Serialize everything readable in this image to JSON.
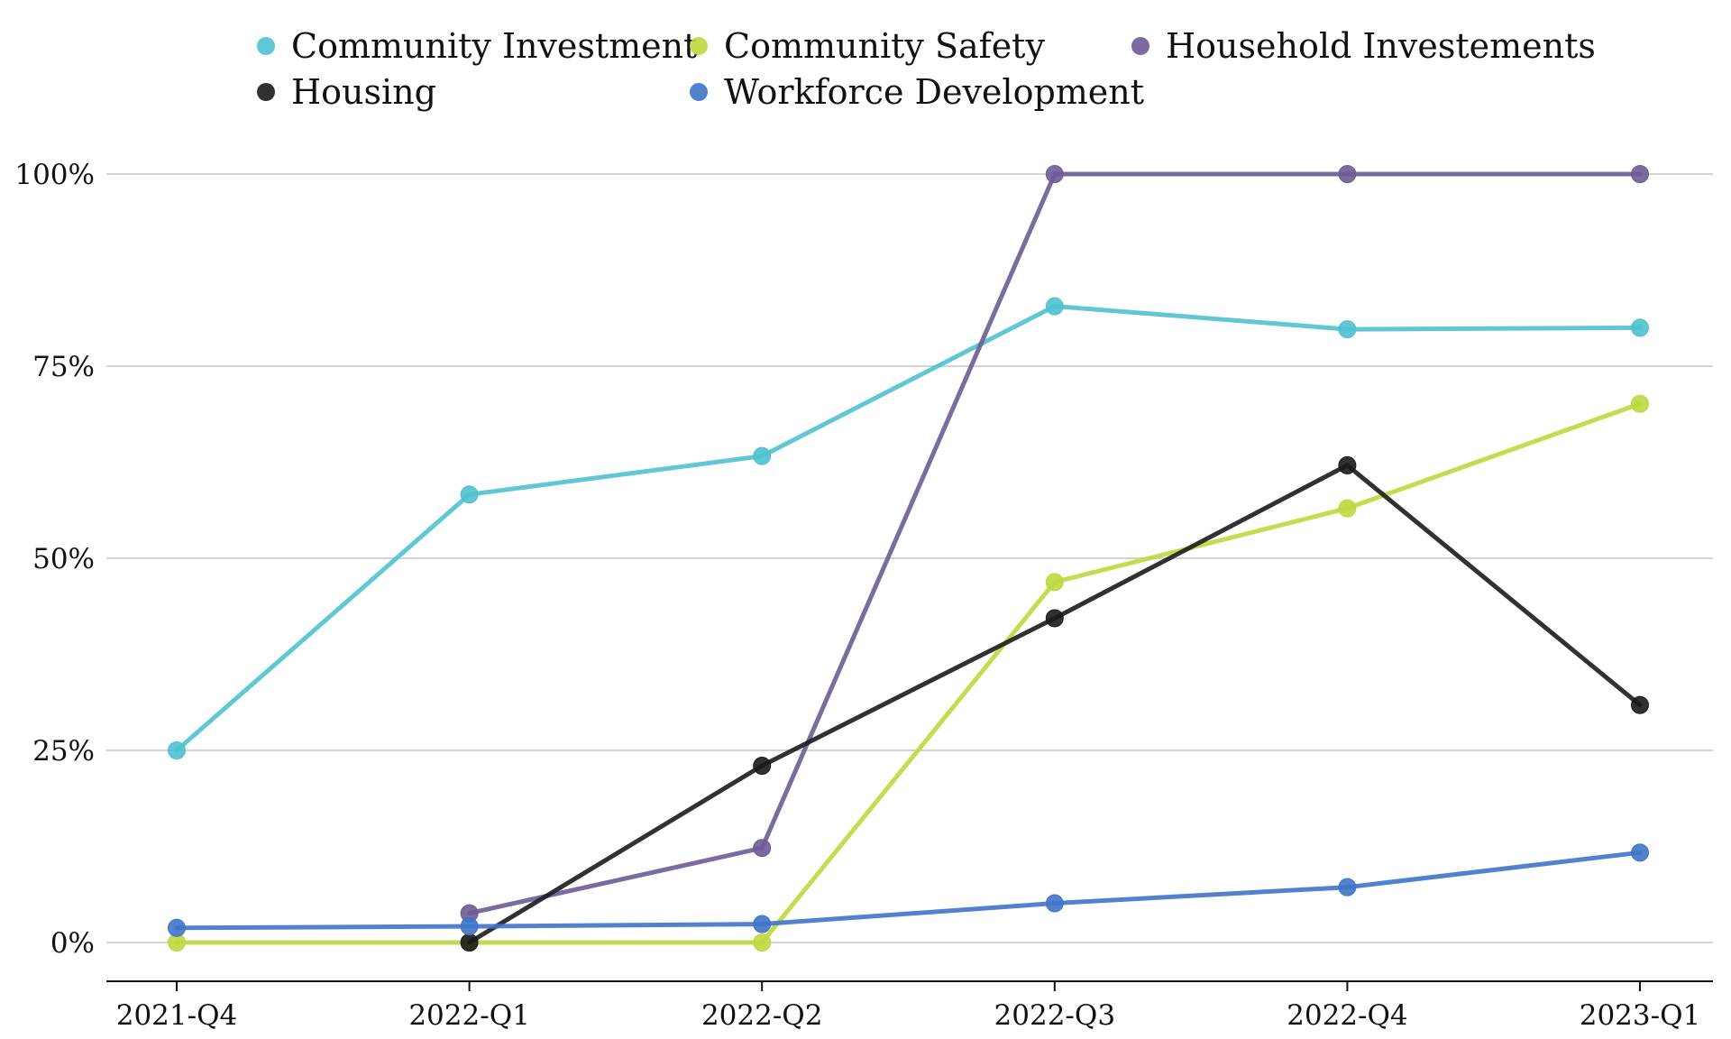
{
  "chart_data": {
    "type": "line",
    "categories": [
      "2021-Q4",
      "2022-Q1",
      "2022-Q2",
      "2022-Q3",
      "2022-Q4",
      "2023-Q1"
    ],
    "yticks": [
      {
        "value": 0,
        "label": "0%"
      },
      {
        "value": 25,
        "label": "25%"
      },
      {
        "value": 50,
        "label": "50%"
      },
      {
        "value": 75,
        "label": "75%"
      },
      {
        "value": 100,
        "label": "100%"
      }
    ],
    "ylim": [
      -5,
      105
    ],
    "grid": true,
    "legend_position": "top",
    "series": [
      {
        "name": "Community Investment",
        "color": "#4fc1cf",
        "values": [
          25,
          58.3,
          63.3,
          82.8,
          79.8,
          80.0
        ]
      },
      {
        "name": "Community Safety",
        "color": "#bcd93d",
        "values": [
          0,
          0,
          0,
          46.9,
          56.5,
          70.1
        ]
      },
      {
        "name": "Household Investements",
        "color": "#6d5c95",
        "values": [
          null,
          3.8,
          12.3,
          100,
          100,
          100
        ]
      },
      {
        "name": "Housing",
        "color": "#1b1b1b",
        "values": [
          null,
          0,
          23.0,
          42.2,
          62.1,
          30.9
        ]
      },
      {
        "name": "Workforce Development",
        "color": "#3f74c9",
        "values": [
          1.9,
          2.1,
          2.4,
          5.1,
          7.2,
          11.7
        ]
      }
    ]
  }
}
